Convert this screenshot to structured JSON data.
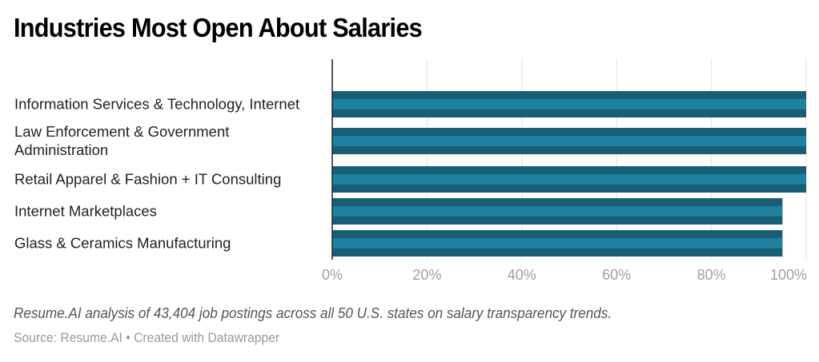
{
  "chart_data": {
    "type": "bar",
    "orientation": "horizontal",
    "title": "Industries Most Open About Salaries",
    "categories": [
      [
        "Information Services & Technology, Internet"
      ],
      [
        "Law Enforcement & Government",
        "Administration"
      ],
      [
        "Retail Apparel & Fashion + IT Consulting"
      ],
      [
        "Internet Marketplaces"
      ],
      [
        "Glass & Ceramics Manufacturing"
      ]
    ],
    "values": [
      100,
      100,
      100,
      95,
      95
    ],
    "value_unit": "%",
    "xlim": [
      0,
      100
    ],
    "xticks": [
      0,
      20,
      40,
      60,
      80,
      100
    ],
    "xtick_labels": [
      "0%",
      "20%",
      "40%",
      "60%",
      "80%",
      "100%"
    ],
    "xlabel": "",
    "ylabel": "",
    "grid": true,
    "legend": "none",
    "colors": {
      "bar_outer": "#175e76",
      "bar_inner": "#1f80a0",
      "gridline": "#e6e6e6",
      "axis": "#222222"
    }
  },
  "description": "Resume.AI analysis of 43,404 job postings across all 50 U.S. states on salary transparency trends.",
  "source": "Source: Resume.AI • Created with Datawrapper"
}
